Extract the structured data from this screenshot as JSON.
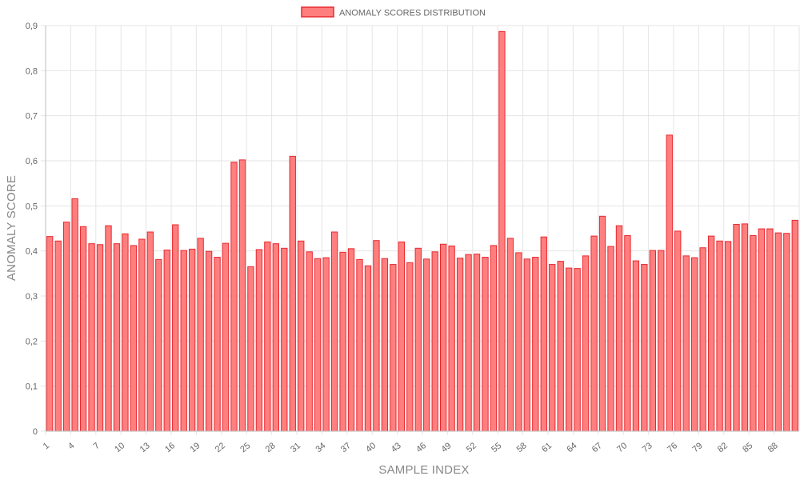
{
  "chart_data": {
    "type": "bar",
    "legend": {
      "label": "ANOMALY SCORES DISTRIBUTION",
      "position": "top"
    },
    "xlabel": "SAMPLE INDEX",
    "ylabel": "ANOMALY SCORE",
    "ylim": [
      0,
      0.9
    ],
    "yticks": [
      "0",
      "0,1",
      "0,2",
      "0,3",
      "0,4",
      "0,5",
      "0,6",
      "0,7",
      "0,8",
      "0,9"
    ],
    "grid": true,
    "colors": {
      "bar_fill": "#ff7f7f",
      "bar_stroke": "#e8282f",
      "grid": "#e5e5e5"
    },
    "categories": [
      "1",
      "2",
      "3",
      "4",
      "5",
      "6",
      "7",
      "8",
      "9",
      "10",
      "11",
      "12",
      "13",
      "14",
      "15",
      "16",
      "17",
      "18",
      "19",
      "20",
      "21",
      "22",
      "23",
      "24",
      "25",
      "26",
      "27",
      "28",
      "29",
      "30",
      "31",
      "32",
      "33",
      "34",
      "35",
      "36",
      "37",
      "38",
      "39",
      "40",
      "41",
      "42",
      "43",
      "44",
      "45",
      "46",
      "47",
      "48",
      "49",
      "50",
      "51",
      "52",
      "53",
      "54",
      "55",
      "56",
      "57",
      "58",
      "59",
      "60",
      "61",
      "62",
      "63",
      "64",
      "65",
      "66",
      "67",
      "68",
      "69",
      "70",
      "71",
      "72",
      "73",
      "74",
      "75",
      "76",
      "77",
      "78",
      "79",
      "80",
      "81",
      "82",
      "83",
      "84",
      "85",
      "86",
      "87",
      "88",
      "89",
      "90"
    ],
    "shown_x_ticks": [
      "1",
      "4",
      "7",
      "10",
      "13",
      "16",
      "19",
      "22",
      "25",
      "28",
      "31",
      "34",
      "37",
      "40",
      "43",
      "46",
      "49",
      "52",
      "55",
      "58",
      "61",
      "64",
      "67",
      "70",
      "73",
      "76",
      "79",
      "82",
      "85",
      "88"
    ],
    "values": [
      0.432,
      0.422,
      0.464,
      0.516,
      0.454,
      0.416,
      0.414,
      0.456,
      0.416,
      0.438,
      0.412,
      0.426,
      0.442,
      0.381,
      0.402,
      0.458,
      0.401,
      0.404,
      0.428,
      0.399,
      0.386,
      0.417,
      0.597,
      0.602,
      0.365,
      0.403,
      0.42,
      0.416,
      0.406,
      0.61,
      0.422,
      0.398,
      0.383,
      0.385,
      0.442,
      0.397,
      0.405,
      0.381,
      0.367,
      0.423,
      0.383,
      0.37,
      0.42,
      0.374,
      0.406,
      0.382,
      0.398,
      0.415,
      0.411,
      0.384,
      0.392,
      0.393,
      0.386,
      0.412,
      0.887,
      0.428,
      0.396,
      0.382,
      0.386,
      0.431,
      0.37,
      0.377,
      0.362,
      0.361,
      0.389,
      0.433,
      0.477,
      0.41,
      0.456,
      0.434,
      0.378,
      0.37,
      0.401,
      0.401,
      0.657,
      0.444,
      0.389,
      0.385,
      0.407,
      0.433,
      0.422,
      0.421,
      0.459,
      0.46,
      0.434,
      0.449,
      0.449,
      0.44,
      0.439,
      0.468
    ]
  }
}
